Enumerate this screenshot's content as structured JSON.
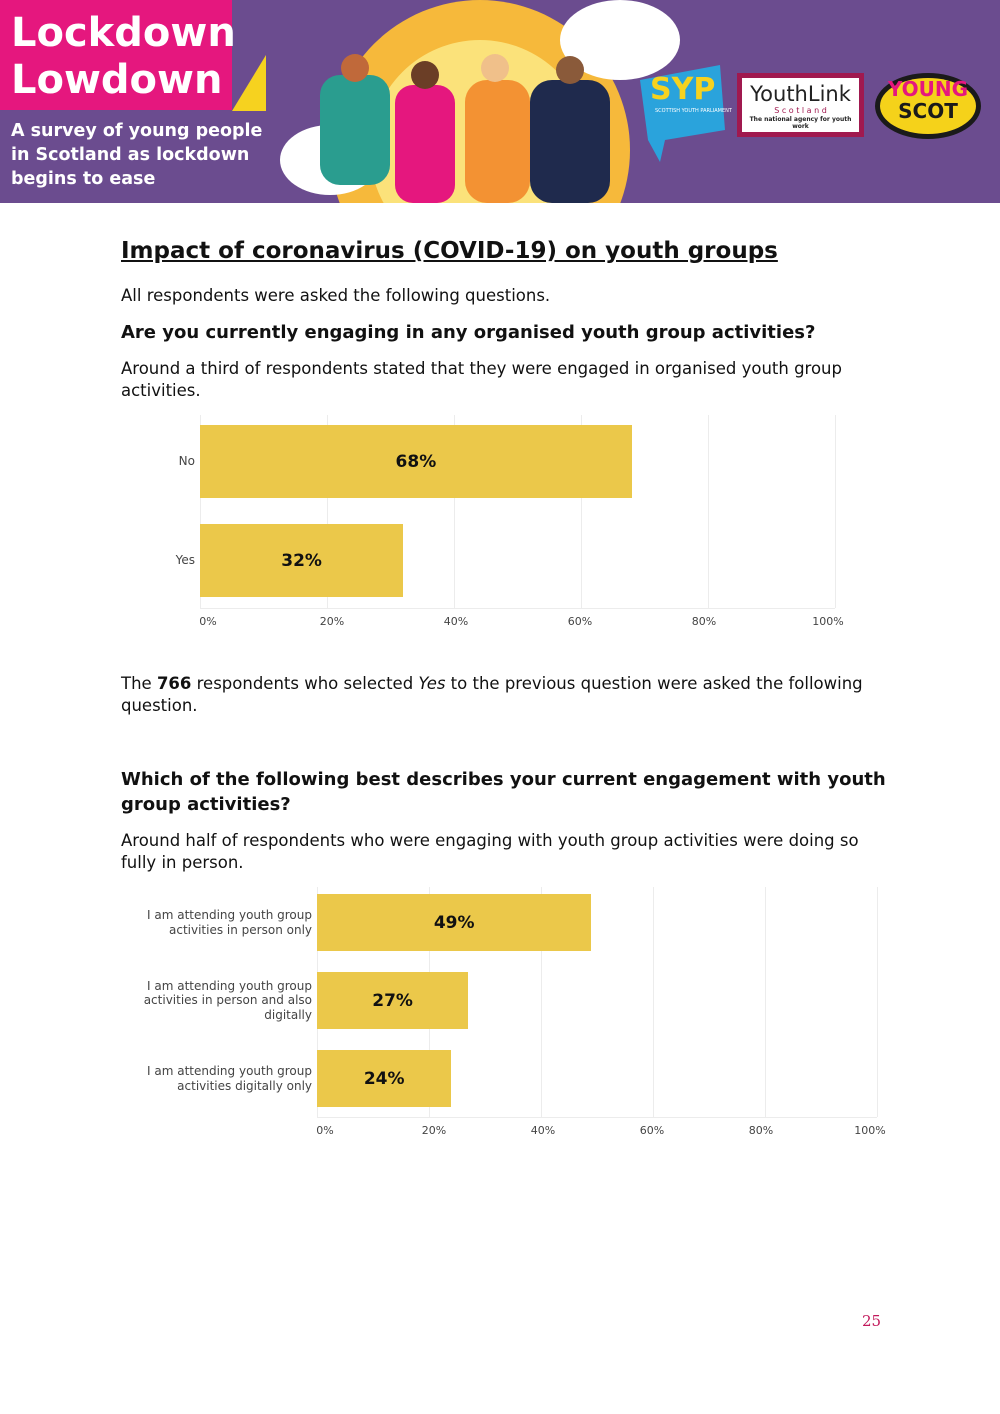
{
  "header": {
    "title_lines": [
      "Lockdown",
      "Lowdown"
    ],
    "subtitle_lines": [
      "A survey of young people",
      "in Scotland as lockdown",
      "begins to ease"
    ],
    "logos": {
      "syp": "SYP",
      "syp_sub": "SCOTTISH YOUTH PARLIAMENT",
      "youthlink": "YouthLink",
      "youthlink_sub": "S c o t l a n d",
      "youthlink_tag": "The national agency for youth work",
      "youngscot_1": "YOUNG",
      "youngscot_2": "SCOT"
    }
  },
  "section_title": "Impact of coronavirus (COVID-19) on youth groups",
  "intro": "All respondents were asked the following questions.",
  "question_1": "Are you currently engaging in any organised youth group activities?",
  "finding_1": "Around a third of respondents stated that they were engaged in organised youth group activities.",
  "follow_up": {
    "before": "The ",
    "count": 766,
    "middle": " respondents who selected ",
    "answer": "Yes",
    "after": " to the previous question were asked the following question."
  },
  "question_2": "Which of the following best describes your current engagement with youth group activities?",
  "finding_2": "Around half of respondents who were engaging with youth group activities were doing so fully in person.",
  "page_number": 25,
  "chart_data": [
    {
      "type": "bar",
      "orientation": "horizontal",
      "categories": [
        "No",
        "Yes"
      ],
      "values": [
        68,
        32
      ],
      "value_labels": [
        "68%",
        "32%"
      ],
      "color": "#ebc84a",
      "xlim": [
        0,
        100
      ],
      "xticks": [
        {
          "value": 0,
          "label": "0%"
        },
        {
          "value": 20,
          "label": "20%"
        },
        {
          "value": 40,
          "label": "40%"
        },
        {
          "value": 60,
          "label": "60%"
        },
        {
          "value": 80,
          "label": "80%"
        },
        {
          "value": 100,
          "label": "100%"
        }
      ],
      "grid": true
    },
    {
      "type": "bar",
      "orientation": "horizontal",
      "categories": [
        "I am attending youth group activities in person only",
        "I am attending youth group activities in person and also digitally",
        "I am attending youth group activities digitally only"
      ],
      "values": [
        49,
        27,
        24
      ],
      "value_labels": [
        "49%",
        "27%",
        "24%"
      ],
      "color": "#ebc84a",
      "xlim": [
        0,
        100
      ],
      "xticks": [
        {
          "value": 0,
          "label": "0%"
        },
        {
          "value": 20,
          "label": "20%"
        },
        {
          "value": 40,
          "label": "40%"
        },
        {
          "value": 60,
          "label": "60%"
        },
        {
          "value": 80,
          "label": "80%"
        },
        {
          "value": 100,
          "label": "100%"
        }
      ],
      "grid": true
    }
  ]
}
